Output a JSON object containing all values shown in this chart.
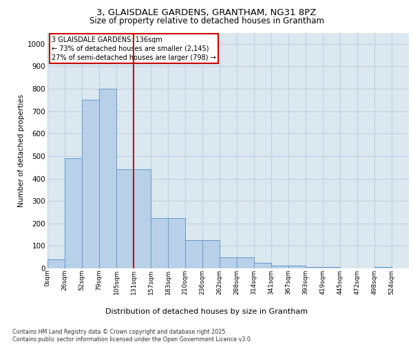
{
  "title_line1": "3, GLAISDALE GARDENS, GRANTHAM, NG31 8PZ",
  "title_line2": "Size of property relative to detached houses in Grantham",
  "xlabel": "Distribution of detached houses by size in Grantham",
  "ylabel": "Number of detached properties",
  "categories": [
    "0sqm",
    "26sqm",
    "52sqm",
    "79sqm",
    "105sqm",
    "131sqm",
    "157sqm",
    "183sqm",
    "210sqm",
    "236sqm",
    "262sqm",
    "288sqm",
    "314sqm",
    "341sqm",
    "367sqm",
    "393sqm",
    "419sqm",
    "445sqm",
    "472sqm",
    "498sqm",
    "524sqm"
  ],
  "bar_heights": [
    40,
    490,
    750,
    800,
    440,
    440,
    225,
    225,
    125,
    125,
    50,
    50,
    25,
    12,
    12,
    5,
    5,
    0,
    0,
    5,
    0
  ],
  "bar_color": "#b8d0e8",
  "bar_edge_color": "#6699cc",
  "vline_x": 5,
  "vline_color": "#cc0000",
  "annotation_box_text": "3 GLAISDALE GARDENS: 136sqm\n← 73% of detached houses are smaller (2,145)\n27% of semi-detached houses are larger (798) →",
  "annotation_box_color": "#cc0000",
  "annotation_box_bg": "#ffffff",
  "ylim": [
    0,
    1050
  ],
  "yticks": [
    0,
    100,
    200,
    300,
    400,
    500,
    600,
    700,
    800,
    900,
    1000
  ],
  "grid_color": "#c0d0e0",
  "background_color": "#dce8f0",
  "footer_text": "Contains HM Land Registry data © Crown copyright and database right 2025.\nContains public sector information licensed under the Open Government Licence v3.0.",
  "fig_bg": "#ffffff"
}
